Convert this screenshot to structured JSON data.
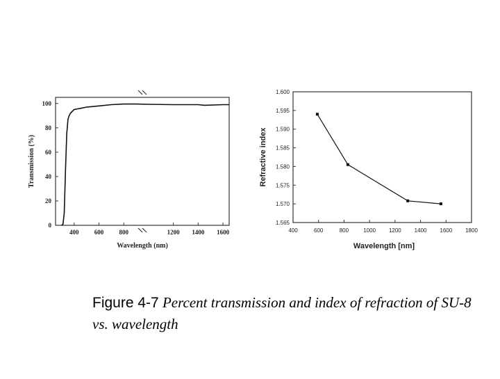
{
  "chart_data": [
    {
      "type": "line",
      "title": "",
      "xlabel": "Wavelength (nm)",
      "ylabel": "Transmission (%)",
      "xlim": [
        250,
        1650
      ],
      "ylim": [
        0,
        105
      ],
      "x_ticks": [
        "400",
        "600",
        "800",
        "1200",
        "1400",
        "1600"
      ],
      "y_ticks": [
        "0",
        "20",
        "40",
        "60",
        "80",
        "100"
      ],
      "axis_break": "x",
      "series": [
        {
          "x": [
            300,
            310,
            320,
            330,
            340,
            350,
            360,
            370,
            380,
            400,
            450,
            500,
            600,
            700,
            800,
            900,
            1000,
            1200,
            1400,
            1450,
            1600,
            1650
          ],
          "values": [
            0,
            1,
            10,
            45,
            75,
            87,
            90,
            92,
            93,
            95,
            96,
            97,
            98,
            99,
            99.5,
            99.5,
            99.3,
            99,
            99,
            98.5,
            99,
            99
          ]
        }
      ]
    },
    {
      "type": "line",
      "title": "",
      "xlabel": "Wavelength [nm]",
      "ylabel": "Refractive index",
      "xlim": [
        400,
        1800
      ],
      "ylim": [
        1.565,
        1.6
      ],
      "x_ticks": [
        "400",
        "600",
        "800",
        "1000",
        "1200",
        "1400",
        "1600",
        "1800"
      ],
      "y_ticks": [
        "1.565",
        "1.570",
        "1.575",
        "1.580",
        "1.585",
        "1.590",
        "1.595",
        "1.600"
      ],
      "series": [
        {
          "x": [
            590,
            830,
            1300,
            1560
          ],
          "values": [
            1.594,
            1.5805,
            1.5708,
            1.57
          ]
        }
      ]
    }
  ],
  "caption": {
    "number": "Figure 4-7",
    "text": "Percent transmission and index of refraction of SU-8 vs. wavelength"
  }
}
